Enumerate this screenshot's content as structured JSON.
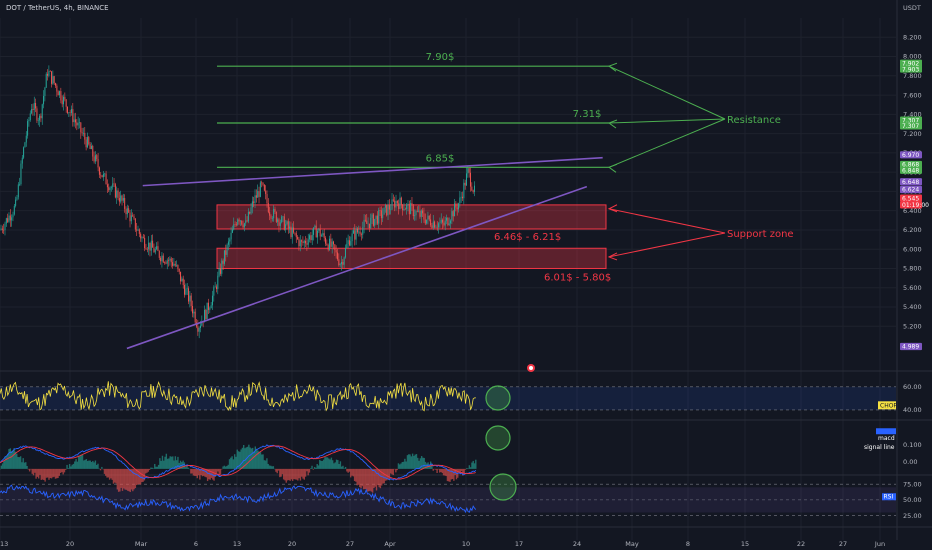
{
  "header": {
    "symbol_title": "DOT / TetherUS, 4h, BINANCE",
    "currency": "USDT"
  },
  "colors": {
    "background": "#131722",
    "grid": "#1e222d",
    "bull": "#26a69a",
    "bear": "#ef5350",
    "green_line": "#4caf50",
    "red_zone": "#f23645",
    "trend_line": "#7e57c2",
    "chop_line": "#f5e142",
    "rsi_line": "#2962ff",
    "macd_line": "#2962ff",
    "signal_line": "#f23645",
    "circle": "#4caf50"
  },
  "chart_data": [
    {
      "type": "candlestick",
      "title": "DOT / TetherUS, 4h, BINANCE",
      "x_ticks": [
        "13",
        "20",
        "Mar",
        "6",
        "13",
        "20",
        "27",
        "Apr",
        "10",
        "17",
        "24",
        "May",
        "8",
        "15",
        "22",
        "27",
        "Jun"
      ],
      "y_ticks": [
        5.2,
        5.4,
        5.6,
        5.8,
        6.0,
        6.2,
        6.4,
        6.6,
        6.8,
        7.0,
        7.2,
        7.4,
        7.6,
        7.8,
        8.0,
        8.2
      ],
      "y_tick_labels": [
        "5.200",
        "5.400",
        "5.600",
        "5.800",
        "6.000",
        "6.200",
        "6.400",
        "6.600",
        "6.800",
        "7.000",
        "7.200",
        "7.400",
        "7.600",
        "7.800",
        "8.000",
        "8.200"
      ],
      "ylim": [
        4.85,
        8.4
      ],
      "path_points": [
        [
          "Feb 11",
          6.35
        ],
        [
          "Feb 13",
          6.2
        ],
        [
          "Feb 15",
          6.45
        ],
        [
          "Feb 16",
          7.05
        ],
        [
          "Feb 17",
          7.5
        ],
        [
          "Feb 18",
          7.35
        ],
        [
          "Feb 19",
          7.85
        ],
        [
          "Feb 20",
          7.7
        ],
        [
          "Feb 22",
          7.4
        ],
        [
          "Feb 24",
          7.1
        ],
        [
          "Feb 26",
          6.75
        ],
        [
          "Feb 28",
          6.55
        ],
        [
          "Mar 1",
          6.4
        ],
        [
          "Mar 3",
          6.1
        ],
        [
          "Mar 5",
          5.95
        ],
        [
          "Mar 7",
          5.85
        ],
        [
          "Mar 9",
          5.45
        ],
        [
          "Mar 10",
          5.2
        ],
        [
          "Mar 11",
          5.35
        ],
        [
          "Mar 12",
          5.55
        ],
        [
          "Mar 13",
          5.85
        ],
        [
          "Mar 14",
          6.1
        ],
        [
          "Mar 15",
          6.35
        ],
        [
          "Mar 16",
          6.25
        ],
        [
          "Mar 17",
          6.5
        ],
        [
          "Mar 18",
          6.65
        ],
        [
          "Mar 19",
          6.4
        ],
        [
          "Mar 21",
          6.25
        ],
        [
          "Mar 23",
          6.05
        ],
        [
          "Mar 25",
          6.2
        ],
        [
          "Mar 27",
          6.0
        ],
        [
          "Mar 28",
          5.85
        ],
        [
          "Mar 29",
          6.1
        ],
        [
          "Mar 31",
          6.25
        ],
        [
          "Apr 2",
          6.35
        ],
        [
          "Apr 4",
          6.5
        ],
        [
          "Apr 6",
          6.4
        ],
        [
          "Apr 8",
          6.3
        ],
        [
          "Apr 10",
          6.25
        ],
        [
          "Apr 12",
          6.5
        ],
        [
          "Apr 13",
          6.8
        ],
        [
          "Apr 14",
          6.55
        ]
      ],
      "price_badges": [
        {
          "label": "7.902",
          "value": 7.93,
          "color": "#4caf50"
        },
        {
          "label": "7.903",
          "value": 7.87,
          "color": "#4caf50"
        },
        {
          "label": "7.307",
          "value": 7.34,
          "color": "#4caf50"
        },
        {
          "label": "7.307",
          "value": 7.28,
          "color": "#4caf50"
        },
        {
          "label": "6.970",
          "value": 6.98,
          "color": "#7e57c2"
        },
        {
          "label": "6.868",
          "value": 6.88,
          "color": "#4caf50"
        },
        {
          "label": "6.848",
          "value": 6.82,
          "color": "#4caf50"
        },
        {
          "label": "6.648",
          "value": 6.7,
          "color": "#7e57c2"
        },
        {
          "label": "6.624",
          "value": 6.62,
          "color": "#7e57c2"
        },
        {
          "label": "6.545",
          "value": 6.53,
          "color": "#f23645"
        },
        {
          "label": "01:19:00",
          "value": 6.46,
          "color": "#f23645"
        },
        {
          "label": "4.989",
          "value": 4.99,
          "color": "#7e57c2"
        }
      ],
      "resistance_lines": [
        {
          "value": 7.9,
          "label": "7.90$"
        },
        {
          "value": 7.31,
          "label": "7.31$"
        },
        {
          "value": 6.85,
          "label": "6.85$"
        }
      ],
      "support_zones": [
        {
          "top": 6.46,
          "bottom": 6.21,
          "label": "6.46$ - 6.21$"
        },
        {
          "top": 6.01,
          "bottom": 5.8,
          "label": "6.01$ - 5.80$"
        }
      ],
      "annotations": {
        "resistance": "Resistance",
        "support": "Support zone"
      },
      "trend_lines": [
        {
          "from": [
            "Mar 3",
            6.66
          ],
          "to": [
            "Apr 30",
            6.95
          ]
        },
        {
          "from": [
            "Mar 1",
            4.97
          ],
          "to": [
            "Apr 28",
            6.65
          ]
        }
      ]
    },
    {
      "type": "line",
      "title": "CHOP",
      "y_ticks": [
        40.0,
        60.0
      ],
      "y_tick_labels": [
        "40.00",
        "60.00"
      ],
      "ylim": [
        33,
        72
      ],
      "band": [
        40,
        60
      ]
    },
    {
      "type": "bar",
      "title": "MACD",
      "series_labels": {
        "macd": "macd",
        "signal": "signal line"
      },
      "y_ticks": [
        0.0,
        0.1
      ],
      "y_tick_labels": [
        "0.00",
        "0.100"
      ],
      "ylim": [
        -0.07,
        0.24
      ]
    },
    {
      "type": "line",
      "title": "RSI",
      "y_ticks": [
        25.0,
        50.0,
        75.0
      ],
      "y_tick_labels": [
        "25.00",
        "50.00",
        "75.00"
      ],
      "ylim": [
        18,
        88
      ],
      "band": [
        30,
        70
      ]
    }
  ]
}
